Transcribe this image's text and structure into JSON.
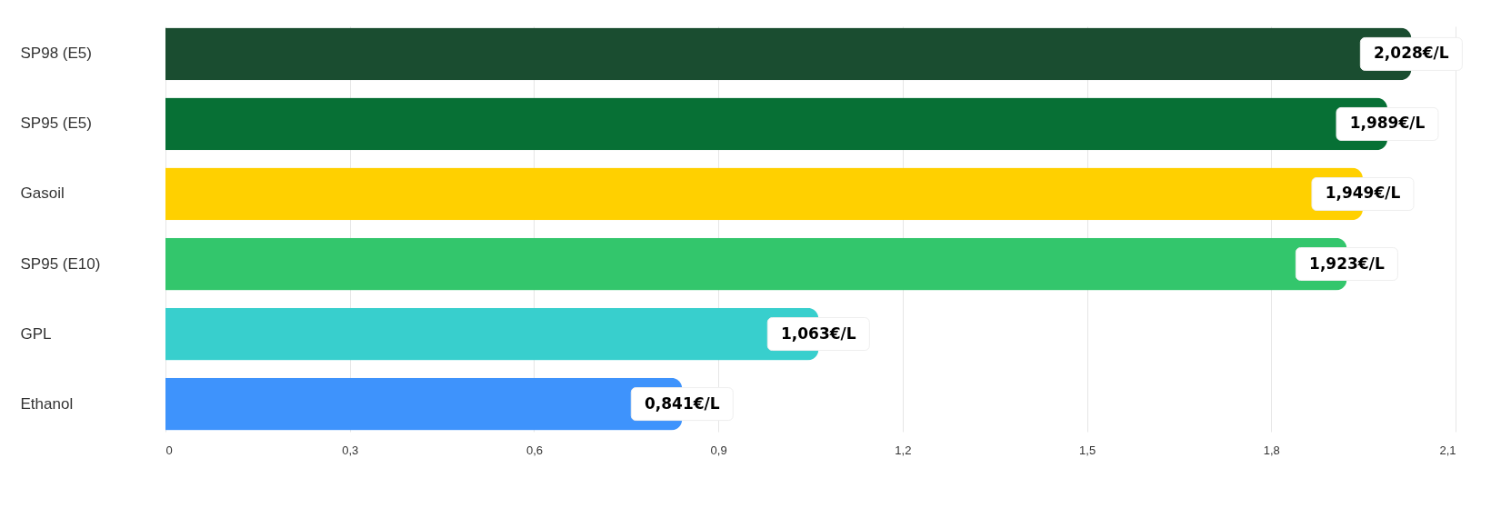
{
  "chart_data": {
    "type": "bar",
    "orientation": "horizontal",
    "categories": [
      "SP98 (E5)",
      "SP95 (E5)",
      "Gasoil",
      "SP95 (E10)",
      "GPL",
      "Ethanol"
    ],
    "values": [
      2.028,
      1.989,
      1.949,
      1.923,
      1.063,
      0.841
    ],
    "colors": [
      "#1a4d30",
      "#077035",
      "#ffd000",
      "#33c66c",
      "#38cfcd",
      "#3e93fc"
    ],
    "value_labels": [
      "2,028€/L",
      "1,989€/L",
      "1,949€/L",
      "1,923€/L",
      "1,063€/L",
      "0,841€/L"
    ],
    "xlim": [
      0,
      2.1
    ],
    "xticks": [
      0,
      {
        "value": 0.3,
        "label": "0,3"
      },
      {
        "value": 0.6,
        "label": "0,6"
      },
      {
        "value": 0.9,
        "label": "0,9"
      },
      {
        "value": 1.2,
        "label": "1,2"
      },
      {
        "value": 1.5,
        "label": "1,5"
      },
      {
        "value": 1.8,
        "label": "1,8"
      },
      {
        "value": 2.1,
        "label": "2,1"
      }
    ],
    "grid": "x"
  }
}
